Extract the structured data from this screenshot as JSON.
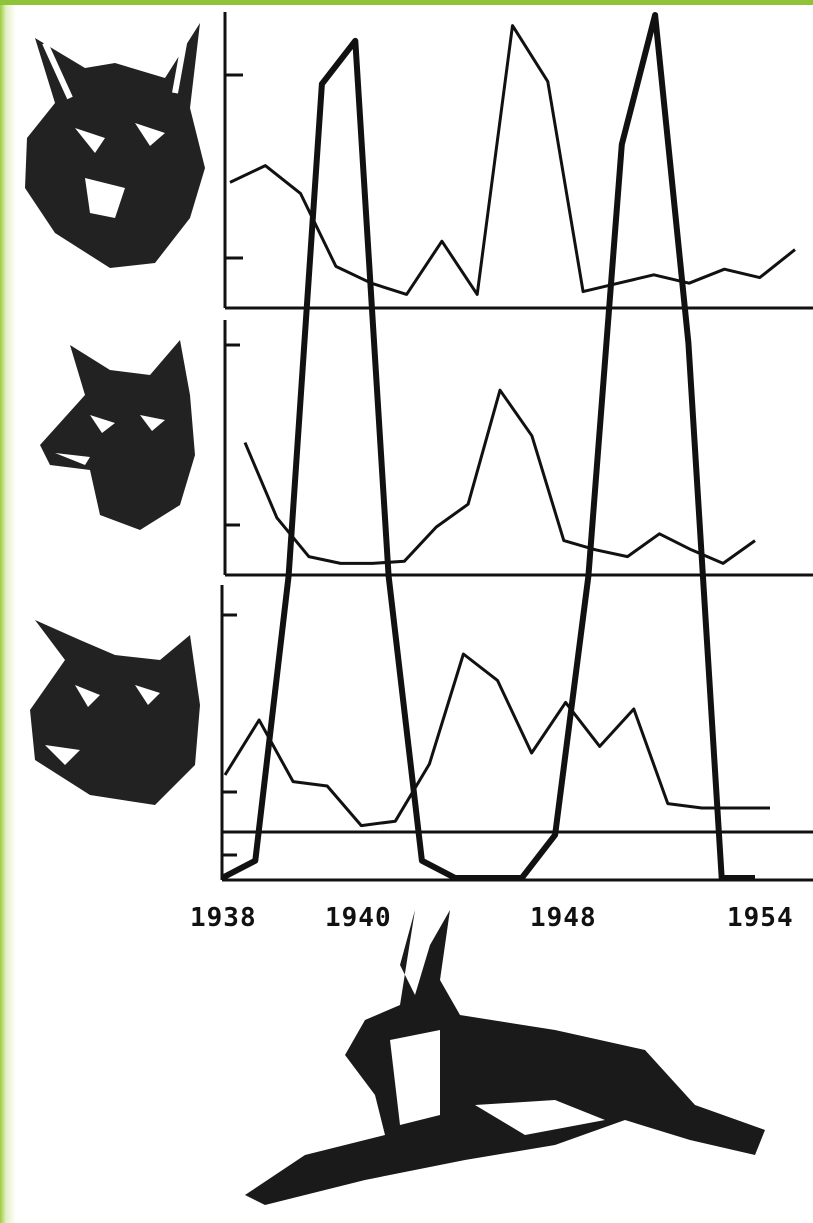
{
  "chart_data": [
    {
      "type": "line",
      "title": "",
      "xlabel": "",
      "ylabel": "",
      "xlim": [
        1938,
        1954
      ],
      "ylim": [
        0,
        1
      ],
      "grid": false,
      "legend": "none",
      "series": [
        {
          "x": [
            1938,
            1939,
            1940,
            1941,
            1942,
            1943,
            1944,
            1945,
            1946,
            1947,
            1948,
            1949,
            1950,
            1951,
            1952,
            1953,
            1954
          ],
          "y": [
            0.42,
            0.48,
            0.38,
            0.12,
            0.06,
            0.02,
            0.21,
            0.02,
            0.98,
            0.78,
            0.03,
            0.06,
            0.09,
            0.06,
            0.11,
            0.08,
            0.18
          ]
        }
      ]
    },
    {
      "type": "line",
      "title": "",
      "xlabel": "",
      "ylabel": "",
      "xlim": [
        1938,
        1954
      ],
      "ylim": [
        0,
        1
      ],
      "grid": false,
      "legend": "none",
      "series": [
        {
          "x": [
            1938,
            1939,
            1940,
            1941,
            1942,
            1943,
            1944,
            1945,
            1946,
            1947,
            1948,
            1949,
            1950,
            1951,
            1952,
            1953,
            1954
          ],
          "y": [
            0.55,
            0.22,
            0.05,
            0.02,
            0.02,
            0.03,
            0.18,
            0.28,
            0.78,
            0.58,
            0.12,
            0.08,
            0.05,
            0.15,
            0.08,
            0.02,
            0.12
          ]
        }
      ]
    },
    {
      "type": "line",
      "title": "",
      "xlabel": "",
      "ylabel": "",
      "xlim": [
        1938,
        1954
      ],
      "ylim": [
        0,
        1
      ],
      "grid": false,
      "legend": "none",
      "x_ticks": [
        "1938",
        "1940",
        "1948",
        "1954"
      ],
      "series": [
        {
          "x": [
            1938,
            1939,
            1940,
            1941,
            1942,
            1943,
            1944,
            1945,
            1946,
            1947,
            1948,
            1949,
            1950,
            1951,
            1952,
            1953,
            1954
          ],
          "y": [
            0.25,
            0.5,
            0.22,
            0.2,
            0.02,
            0.04,
            0.3,
            0.8,
            0.68,
            0.35,
            0.58,
            0.38,
            0.55,
            0.12,
            0.1,
            0.1,
            0.1
          ]
        },
        {
          "x": [
            1938,
            1939,
            1940,
            1941,
            1942,
            1943,
            1944,
            1945,
            1946,
            1947,
            1948,
            1949,
            1950,
            1951,
            1952,
            1953,
            1954
          ],
          "y": [
            0.0,
            0.02,
            0.35,
            0.92,
            0.97,
            0.35,
            0.02,
            0.0,
            0.0,
            0.0,
            0.05,
            0.35,
            0.85,
            1.0,
            0.62,
            0.0,
            0.0
          ]
        }
      ]
    }
  ],
  "icons": [
    "lynx-icon",
    "fox-icon",
    "wolf-icon",
    "hare-icon"
  ],
  "colors": {
    "accent": "#8fc33a",
    "ink": "#111111"
  }
}
